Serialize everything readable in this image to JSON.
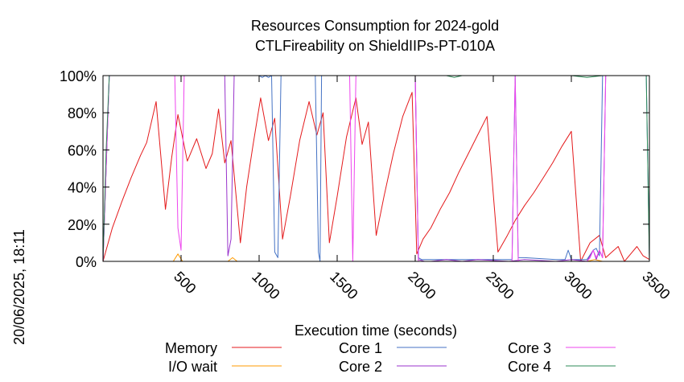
{
  "chart_data": {
    "type": "line",
    "title": "Resources Consumption for 2024-gold",
    "subtitle": "CTLFireability on ShieldIIPs-PT-010A",
    "xlabel": "Execution time (seconds)",
    "ylabel": "",
    "side_label": "20/06/2025, 18:11",
    "xlim": [
      0,
      3500
    ],
    "ylim": [
      0,
      100
    ],
    "x_ticks": [
      500,
      1000,
      1500,
      2000,
      2500,
      3000,
      3500
    ],
    "x_tick_labels": [
      "500",
      "1000",
      "1500",
      "2000",
      "2500",
      "3000",
      "3500"
    ],
    "y_ticks": [
      0,
      20,
      40,
      60,
      80,
      100
    ],
    "y_tick_labels": [
      "0%",
      "20%",
      "40%",
      "60%",
      "80%",
      "100%"
    ],
    "grid": false,
    "legend_position": "bottom",
    "series": [
      {
        "name": "Memory",
        "color": "#e41a1c",
        "x": [
          0,
          60,
          120,
          180,
          240,
          280,
          340,
          400,
          440,
          480,
          540,
          600,
          660,
          700,
          740,
          780,
          820,
          880,
          920,
          960,
          1010,
          1060,
          1100,
          1150,
          1200,
          1260,
          1320,
          1370,
          1410,
          1450,
          1500,
          1560,
          1620,
          1660,
          1700,
          1750,
          1800,
          1860,
          1920,
          1980,
          2010,
          2050,
          2100,
          2160,
          2220,
          2280,
          2340,
          2400,
          2460,
          2530,
          2590,
          2640,
          2700,
          2760,
          2820,
          2880,
          2940,
          3000,
          3060,
          3120,
          3180,
          3220,
          3260,
          3300,
          3340,
          3380,
          3420,
          3460,
          3500
        ],
        "y": [
          0,
          18,
          32,
          45,
          57,
          64,
          86,
          28,
          56,
          79,
          54,
          66,
          50,
          58,
          82,
          53,
          65,
          10,
          40,
          62,
          88,
          65,
          77,
          12,
          35,
          65,
          86,
          68,
          80,
          10,
          35,
          67,
          88,
          63,
          75,
          14,
          35,
          58,
          78,
          91,
          4,
          12,
          18,
          28,
          37,
          48,
          58,
          68,
          78,
          5,
          14,
          22,
          30,
          37,
          45,
          53,
          62,
          70,
          0,
          10,
          14,
          2,
          5,
          8,
          0,
          4,
          8,
          3,
          1
        ]
      },
      {
        "name": "I/O wait",
        "color": "#ff9900",
        "x": [
          0,
          450,
          480,
          510,
          540,
          800,
          830,
          860,
          900,
          1000,
          2000,
          3000,
          3100,
          3150,
          3200,
          3500
        ],
        "y": [
          0,
          0,
          4,
          0,
          0,
          0,
          2,
          0,
          0,
          0,
          0,
          0,
          0,
          1,
          0,
          0
        ]
      },
      {
        "name": "Core 1",
        "color": "#4472c4",
        "x": [
          0,
          40,
          1000,
          1020,
          1040,
          1060,
          1080,
          1100,
          1120,
          1140,
          1160,
          1340,
          1360,
          1380,
          1390,
          1400,
          1420,
          1440,
          1460,
          1980,
          2000,
          2020,
          2040,
          2100,
          2620,
          2640,
          2660,
          2700,
          2900,
          2960,
          2980,
          3000,
          3040,
          3100,
          3140,
          3160,
          3180,
          3200,
          3220,
          3240,
          3260,
          3280,
          3480,
          3500
        ],
        "y": [
          0,
          100,
          100,
          99,
          100,
          99,
          100,
          5,
          2,
          100,
          100,
          100,
          100,
          5,
          0,
          100,
          100,
          100,
          100,
          100,
          100,
          2,
          1,
          1,
          1,
          100,
          2,
          2,
          1,
          1,
          6,
          1,
          1,
          1,
          6,
          7,
          3,
          100,
          100,
          100,
          100,
          100,
          100,
          2
        ]
      },
      {
        "name": "Core 2",
        "color": "#9933cc",
        "x": [
          0,
          40,
          780,
          800,
          820,
          840,
          1100,
          1140,
          1160,
          1180,
          1200,
          1380,
          1400,
          1420,
          1980,
          2000,
          2020,
          2060,
          2100,
          2200,
          2300,
          2400,
          2600,
          2700,
          2900,
          3000,
          3100,
          3140,
          3160,
          3180,
          3200,
          3220,
          3500
        ],
        "y": [
          0,
          100,
          100,
          3,
          12,
          100,
          100,
          100,
          100,
          100,
          100,
          100,
          100,
          100,
          100,
          100,
          1,
          0,
          0,
          1,
          0,
          1,
          0,
          1,
          0,
          1,
          0,
          6,
          1,
          6,
          2,
          100,
          100
        ]
      },
      {
        "name": "Core 3",
        "color": "#ee44ee",
        "x": [
          0,
          40,
          460,
          480,
          500,
          520,
          540,
          560,
          1580,
          1600,
          1620,
          1640,
          1900,
          1980,
          2000,
          2020,
          2040,
          2600,
          2620,
          2640,
          2660,
          3100,
          3120,
          3140,
          3160,
          3180,
          3200,
          3220,
          3240,
          3500
        ],
        "y": [
          0,
          100,
          100,
          18,
          6,
          100,
          100,
          100,
          100,
          0,
          100,
          100,
          100,
          100,
          100,
          0,
          0,
          0,
          0,
          100,
          0,
          0,
          2,
          6,
          2,
          6,
          2,
          100,
          100,
          100
        ]
      },
      {
        "name": "Core 4",
        "color": "#2e8b57",
        "x": [
          0,
          20,
          40,
          2000,
          2100,
          2200,
          2250,
          2300,
          2400,
          3000,
          3100,
          3200,
          3480,
          3500
        ],
        "y": [
          0,
          60,
          100,
          100,
          100,
          100,
          99,
          100,
          100,
          100,
          99,
          100,
          100,
          0
        ]
      }
    ]
  }
}
